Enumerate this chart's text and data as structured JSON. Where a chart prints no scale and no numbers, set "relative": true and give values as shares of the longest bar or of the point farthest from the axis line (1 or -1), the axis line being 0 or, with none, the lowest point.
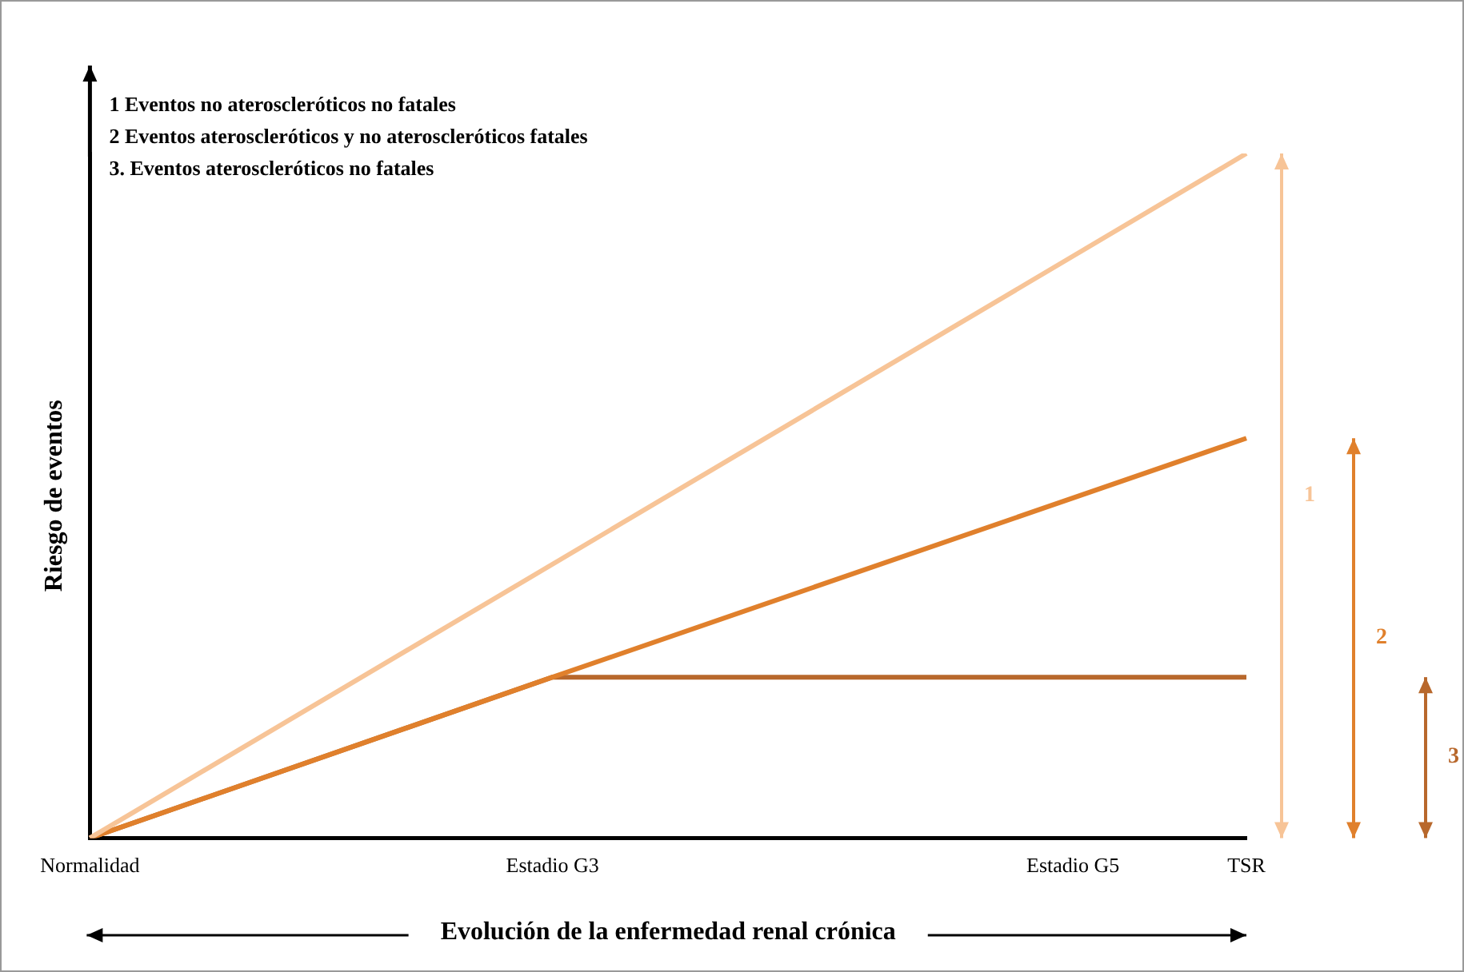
{
  "chart_data": {
    "type": "line",
    "relative": true,
    "grid": false,
    "legend": false,
    "xlabel": "Evolución de la enfermedad renal crónica",
    "ylabel": "Riesgo de eventos",
    "categories": [
      "Normalidad",
      null,
      null,
      null,
      null,
      null,
      null,
      null,
      "Estadio G3",
      null,
      null,
      null,
      null,
      null,
      null,
      null,
      null,
      "Estadio G5",
      null,
      null,
      "TSR"
    ],
    "series": [
      {
        "color": "#f7c497",
        "x": [
          "Normalidad",
          "TSR"
        ],
        "values": [
          0,
          1
        ]
      },
      {
        "color": "#e0802c",
        "x": [
          "Normalidad",
          "Estadio G3",
          "TSR"
        ],
        "values": [
          0,
          0.235,
          0.584
        ]
      },
      {
        "color": "#b8682c",
        "x": [
          "Normalidad",
          "Estadio G3",
          "TSR"
        ],
        "values": [
          0,
          0.235,
          0.235
        ]
      }
    ],
    "annotations": [
      "1 Eventos no ateroscleróticos no fatales",
      "2 Eventos ateroscleróticos y no ateroscleróticos fatales",
      "3. Eventos ateroscleróticos no fatales",
      "1",
      "2",
      "3"
    ]
  }
}
